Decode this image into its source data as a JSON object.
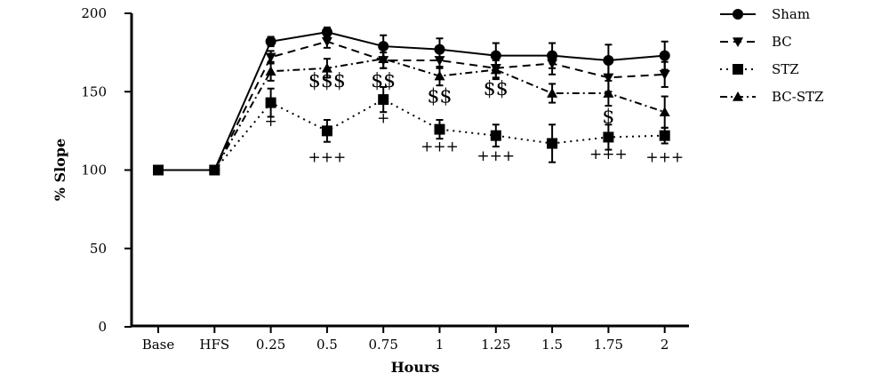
{
  "chart_data": {
    "type": "line",
    "xlabel": "Hours",
    "ylabel": "% Slope",
    "ylim": [
      0,
      200
    ],
    "yticks": [
      "0",
      "50",
      "100",
      "150",
      "200"
    ],
    "categories": [
      "Base",
      "HFS",
      "0.25",
      "0.5",
      "0.75",
      "1",
      "1.25",
      "1.5",
      "1.75",
      "2"
    ],
    "legend_position": "top-right",
    "grid": false,
    "series": [
      {
        "name": "Sham",
        "marker": "circle",
        "dash": "solid",
        "values": [
          100,
          100,
          182,
          188,
          179,
          177,
          173,
          173,
          170,
          173
        ],
        "errors": [
          0,
          0,
          3,
          3,
          7,
          7,
          8,
          8,
          10,
          9
        ]
      },
      {
        "name": "BC",
        "marker": "triangle-down",
        "dash": "dashed",
        "values": [
          100,
          100,
          172,
          182,
          170,
          170,
          165,
          168,
          159,
          161
        ],
        "errors": [
          0,
          0,
          4,
          4,
          5,
          5,
          6,
          7,
          9,
          8
        ]
      },
      {
        "name": "STZ",
        "marker": "square",
        "dash": "dotted",
        "values": [
          100,
          100,
          143,
          125,
          145,
          126,
          122,
          117,
          121,
          122
        ],
        "errors": [
          0,
          0,
          9,
          7,
          8,
          6,
          7,
          12,
          8,
          5
        ]
      },
      {
        "name": "BC-STZ",
        "marker": "triangle-up",
        "dash": "dash-dot",
        "values": [
          100,
          100,
          163,
          165,
          171,
          160,
          164,
          149,
          149,
          137
        ],
        "errors": [
          0,
          0,
          6,
          6,
          6,
          6,
          6,
          6,
          8,
          10
        ]
      }
    ],
    "annotations": [
      {
        "text": "+",
        "category": "0.25",
        "y": 128,
        "size": "small"
      },
      {
        "text": "+++",
        "category": "0.5",
        "y": 105,
        "size": "small"
      },
      {
        "text": "+",
        "category": "0.75",
        "y": 130,
        "size": "small"
      },
      {
        "text": "+++",
        "category": "1",
        "y": 112,
        "size": "small"
      },
      {
        "text": "+++",
        "category": "1.25",
        "y": 106,
        "size": "small"
      },
      {
        "text": "+++",
        "category": "1.75",
        "y": 107,
        "size": "small"
      },
      {
        "text": "+++",
        "category": "2",
        "y": 105,
        "size": "small"
      },
      {
        "text": "$$$",
        "category": "0.5",
        "y": 153,
        "size": "large"
      },
      {
        "text": "$$",
        "category": "0.75",
        "y": 153,
        "size": "large"
      },
      {
        "text": "$$",
        "category": "1",
        "y": 143,
        "size": "large"
      },
      {
        "text": "$$",
        "category": "1.25",
        "y": 148,
        "size": "large"
      },
      {
        "text": "$",
        "category": "1.75",
        "y": 130,
        "size": "large"
      }
    ]
  }
}
